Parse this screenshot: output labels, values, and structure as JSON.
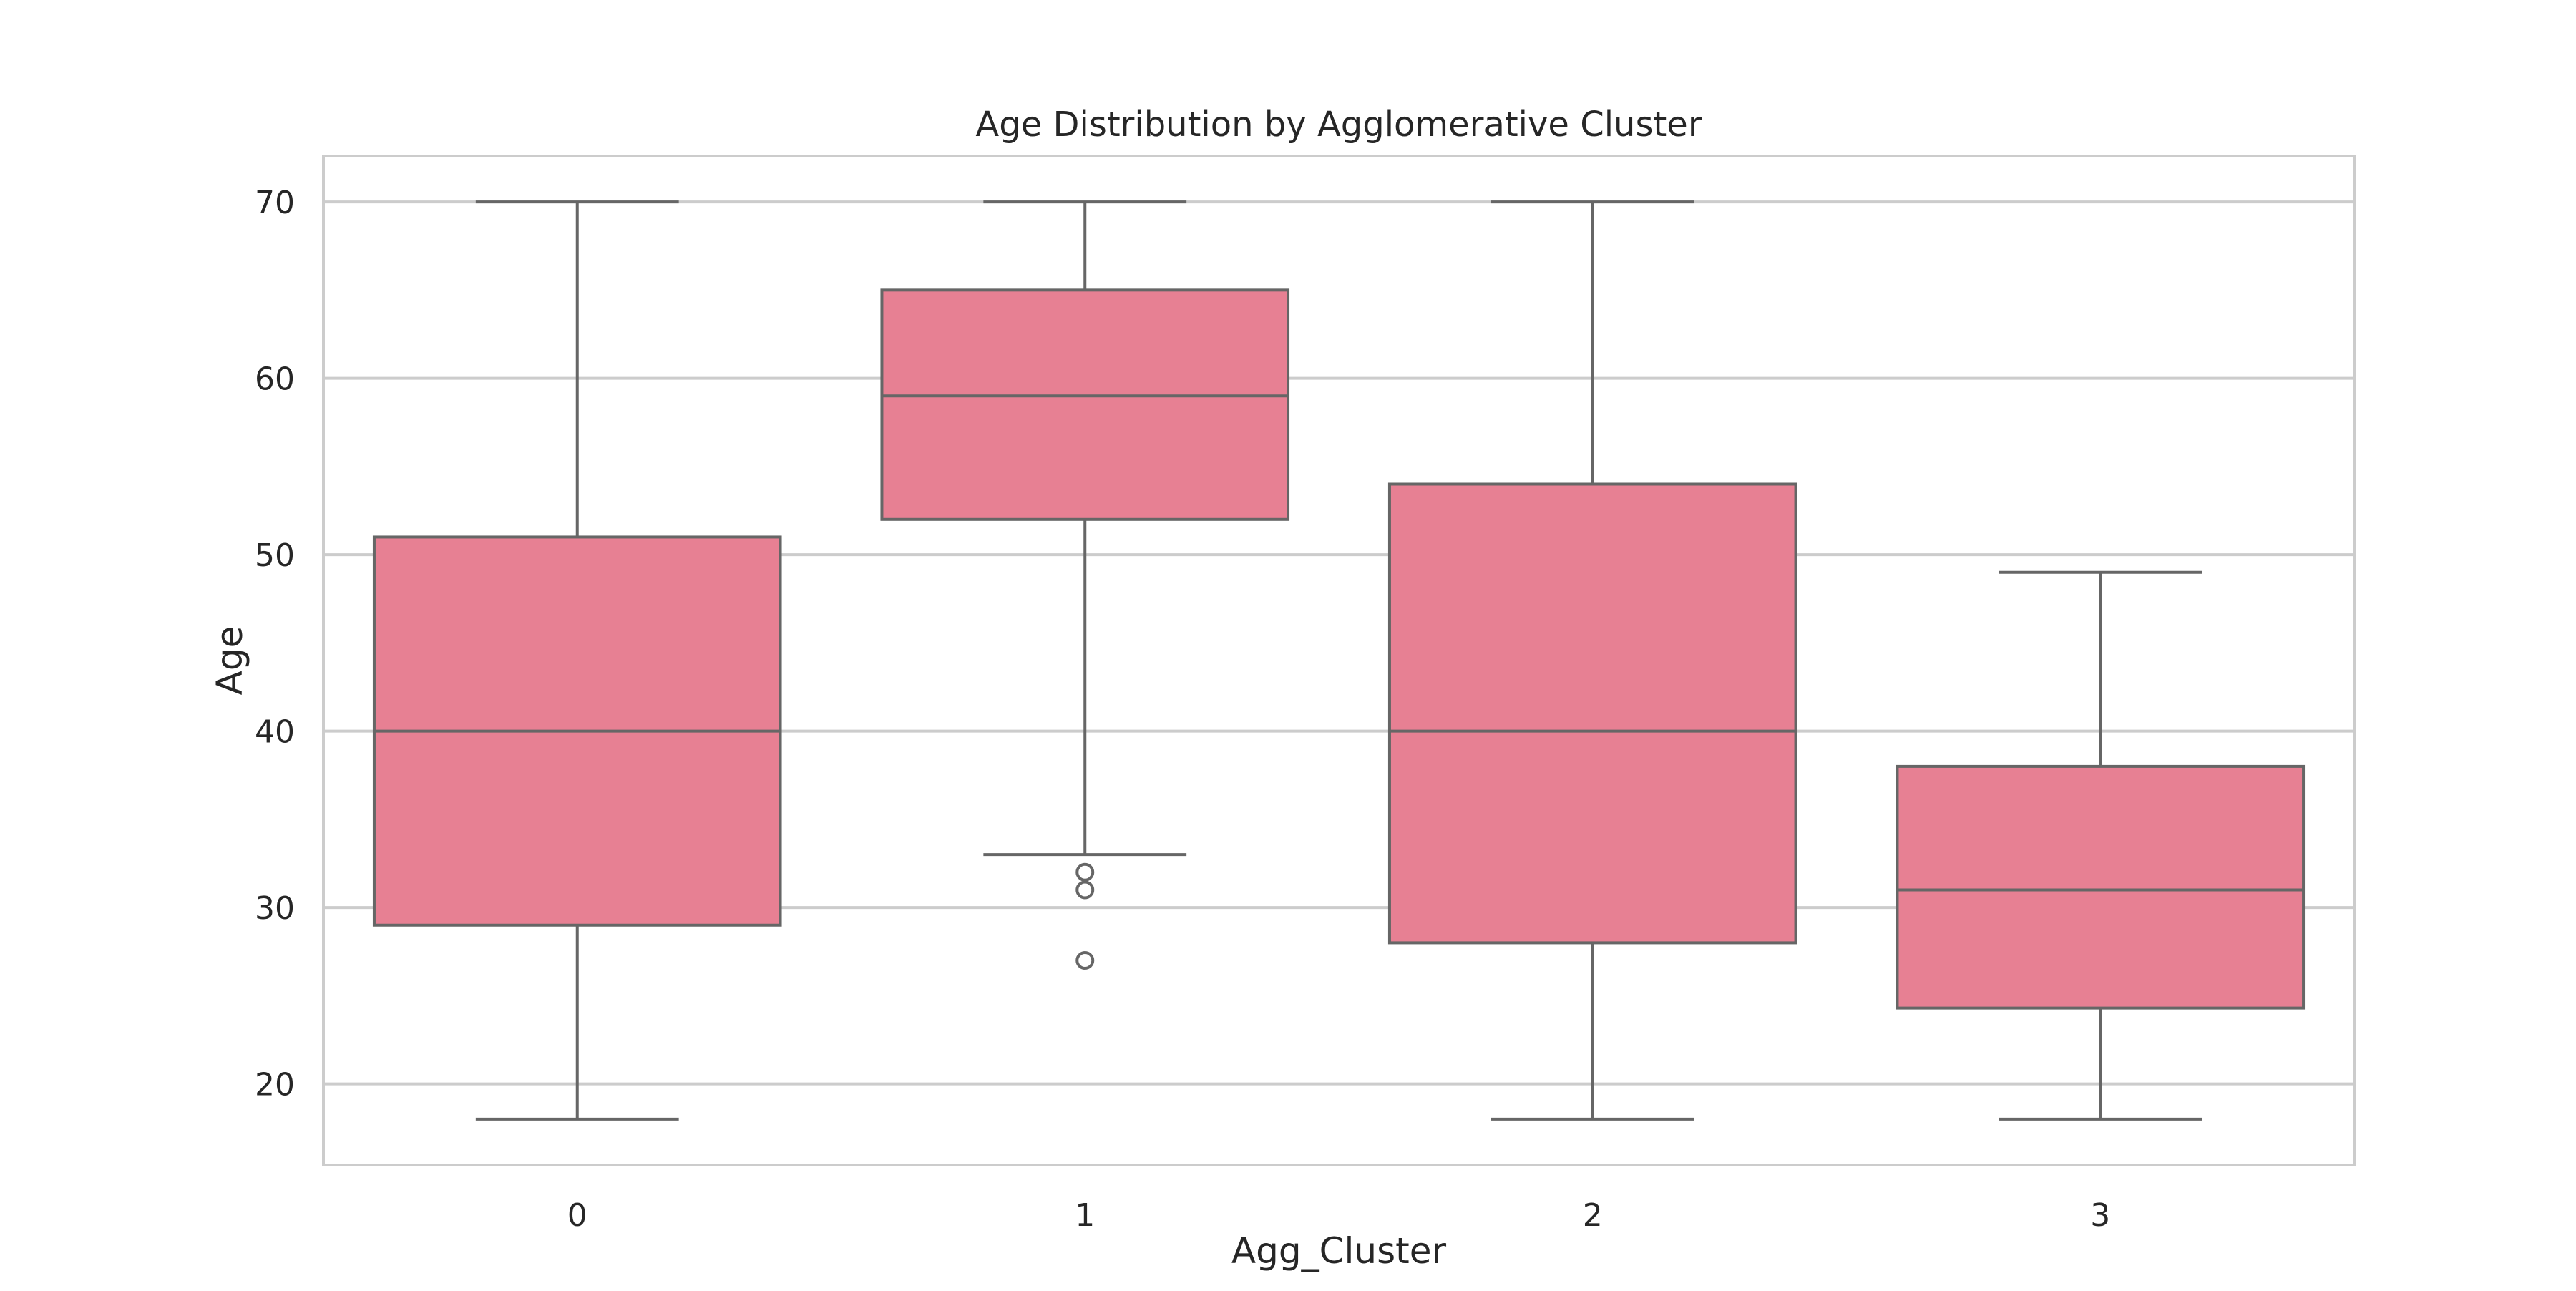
{
  "chart_data": {
    "type": "box",
    "title": "Age Distribution by Agglomerative Cluster",
    "xlabel": "Agg_Cluster",
    "ylabel": "Age",
    "ylim": [
      15.4,
      72.6
    ],
    "yticks": [
      20,
      30,
      40,
      50,
      60,
      70
    ],
    "categories": [
      "0",
      "1",
      "2",
      "3"
    ],
    "boxes": [
      {
        "category": "0",
        "whisker_low": 18,
        "q1": 29,
        "median": 40,
        "q3": 51,
        "whisker_high": 70,
        "outliers": []
      },
      {
        "category": "1",
        "whisker_low": 33,
        "q1": 52,
        "median": 59,
        "q3": 65,
        "whisker_high": 70,
        "outliers": [
          32,
          31,
          27
        ]
      },
      {
        "category": "2",
        "whisker_low": 18,
        "q1": 28,
        "median": 40,
        "q3": 54,
        "whisker_high": 70,
        "outliers": []
      },
      {
        "category": "3",
        "whisker_low": 18,
        "q1": 24.3,
        "median": 31,
        "q3": 38,
        "whisker_high": 49,
        "outliers": []
      }
    ],
    "grid": true,
    "colors": {
      "box_fill": "#e78093",
      "box_line": "#666666",
      "grid": "#cccccc",
      "frame": "#cccccc"
    }
  }
}
